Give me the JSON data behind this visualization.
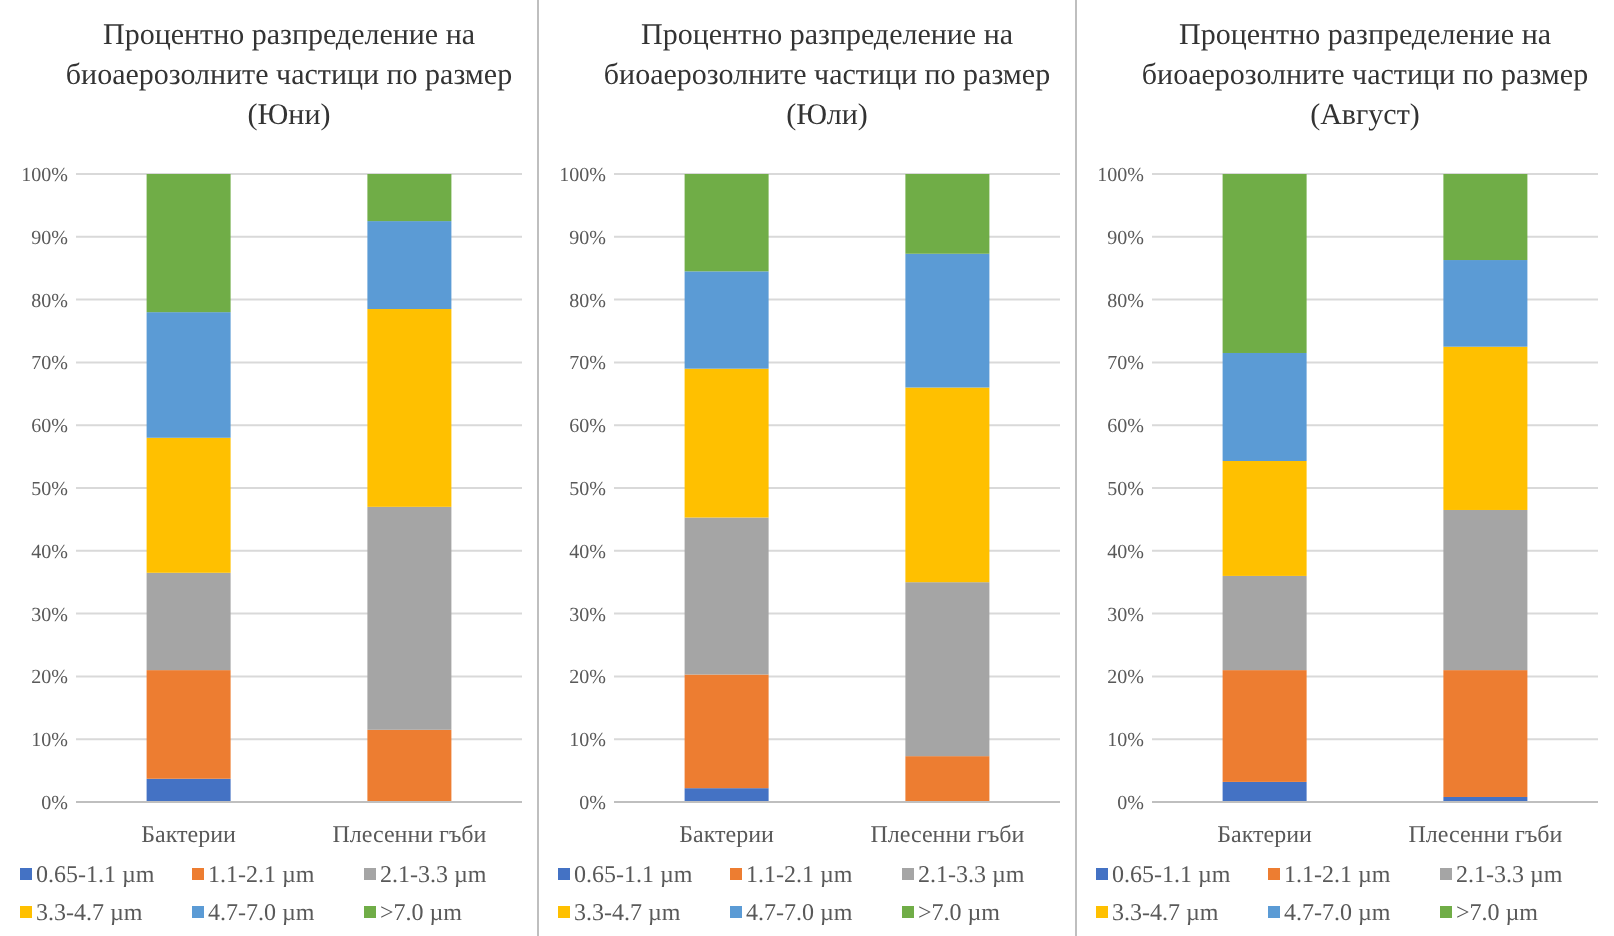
{
  "chart_data": [
    {
      "type": "bar",
      "title": "Процентно разпределение на\nбиоаерозолните частици по размер\n(Юни)",
      "categories": [
        "Бактерии",
        "Плесенни гъби"
      ],
      "stacked": true,
      "grid": "y",
      "legend": "bottom",
      "ylim": [
        0,
        100
      ],
      "yticks": [
        {
          "value": 0,
          "label": "0%"
        },
        {
          "value": 10,
          "label": "10%"
        },
        {
          "value": 20,
          "label": "20%"
        },
        {
          "value": 30,
          "label": "30%"
        },
        {
          "value": 40,
          "label": "40%"
        },
        {
          "value": 50,
          "label": "50%"
        },
        {
          "value": 60,
          "label": "60%"
        },
        {
          "value": 70,
          "label": "70%"
        },
        {
          "value": 80,
          "label": "80%"
        },
        {
          "value": 90,
          "label": "90%"
        },
        {
          "value": 100,
          "label": "100%"
        }
      ],
      "series": [
        {
          "name": "0.65-1.1 µm",
          "color": "#4472c4",
          "values": [
            3.7,
            0
          ]
        },
        {
          "name": "1.1-2.1 µm",
          "color": "#ed7d31",
          "values": [
            17.3,
            11.5
          ]
        },
        {
          "name": "2.1-3.3 µm",
          "color": "#a5a5a5",
          "values": [
            15.5,
            35.5
          ]
        },
        {
          "name": "3.3-4.7 µm",
          "color": "#ffc000",
          "values": [
            21.5,
            31.5
          ]
        },
        {
          "name": "4.7-7.0 µm",
          "color": "#5b9bd5",
          "values": [
            20,
            14
          ]
        },
        {
          "name": ">7.0 µm",
          "color": "#70ad47",
          "values": [
            22,
            7.5
          ]
        }
      ]
    },
    {
      "type": "bar",
      "title": "Процентно разпределение на\nбиоаерозолните частици по размер\n(Юли)",
      "categories": [
        "Бактерии",
        "Плесенни гъби"
      ],
      "stacked": true,
      "grid": "y",
      "legend": "bottom",
      "ylim": [
        0,
        100
      ],
      "yticks": [
        {
          "value": 0,
          "label": "0%"
        },
        {
          "value": 10,
          "label": "10%"
        },
        {
          "value": 20,
          "label": "20%"
        },
        {
          "value": 30,
          "label": "30%"
        },
        {
          "value": 40,
          "label": "40%"
        },
        {
          "value": 50,
          "label": "50%"
        },
        {
          "value": 60,
          "label": "60%"
        },
        {
          "value": 70,
          "label": "70%"
        },
        {
          "value": 80,
          "label": "80%"
        },
        {
          "value": 90,
          "label": "90%"
        },
        {
          "value": 100,
          "label": "100%"
        }
      ],
      "series": [
        {
          "name": "0.65-1.1 µm",
          "color": "#4472c4",
          "values": [
            2.2,
            0
          ]
        },
        {
          "name": "1.1-2.1 µm",
          "color": "#ed7d31",
          "values": [
            18.1,
            7.3
          ]
        },
        {
          "name": "2.1-3.3 µm",
          "color": "#a5a5a5",
          "values": [
            25,
            27.7
          ]
        },
        {
          "name": "3.3-4.7 µm",
          "color": "#ffc000",
          "values": [
            23.7,
            31
          ]
        },
        {
          "name": "4.7-7.0 µm",
          "color": "#5b9bd5",
          "values": [
            15.5,
            21.3
          ]
        },
        {
          "name": ">7.0 µm",
          "color": "#70ad47",
          "values": [
            15.5,
            12.7
          ]
        }
      ]
    },
    {
      "type": "bar",
      "title": "Процентно разпределение на\nбиоаерозолните частици по размер\n(Август)",
      "categories": [
        "Бактерии",
        "Плесенни гъби"
      ],
      "stacked": true,
      "grid": "y",
      "legend": "bottom",
      "ylim": [
        0,
        100
      ],
      "yticks": [
        {
          "value": 0,
          "label": "0%"
        },
        {
          "value": 10,
          "label": "10%"
        },
        {
          "value": 20,
          "label": "20%"
        },
        {
          "value": 30,
          "label": "30%"
        },
        {
          "value": 40,
          "label": "40%"
        },
        {
          "value": 50,
          "label": "50%"
        },
        {
          "value": 60,
          "label": "60%"
        },
        {
          "value": 70,
          "label": "70%"
        },
        {
          "value": 80,
          "label": "80%"
        },
        {
          "value": 90,
          "label": "90%"
        },
        {
          "value": 100,
          "label": "100%"
        }
      ],
      "series": [
        {
          "name": "0.65-1.1 µm",
          "color": "#4472c4",
          "values": [
            3.2,
            0.8
          ]
        },
        {
          "name": "1.1-2.1 µm",
          "color": "#ed7d31",
          "values": [
            17.8,
            20.2
          ]
        },
        {
          "name": "2.1-3.3 µm",
          "color": "#a5a5a5",
          "values": [
            15,
            25.5
          ]
        },
        {
          "name": "3.3-4.7 µm",
          "color": "#ffc000",
          "values": [
            18.3,
            26
          ]
        },
        {
          "name": "4.7-7.0 µm",
          "color": "#5b9bd5",
          "values": [
            17.2,
            13.8
          ]
        },
        {
          "name": ">7.0 µm",
          "color": "#70ad47",
          "values": [
            28.5,
            13.7
          ]
        }
      ]
    }
  ]
}
